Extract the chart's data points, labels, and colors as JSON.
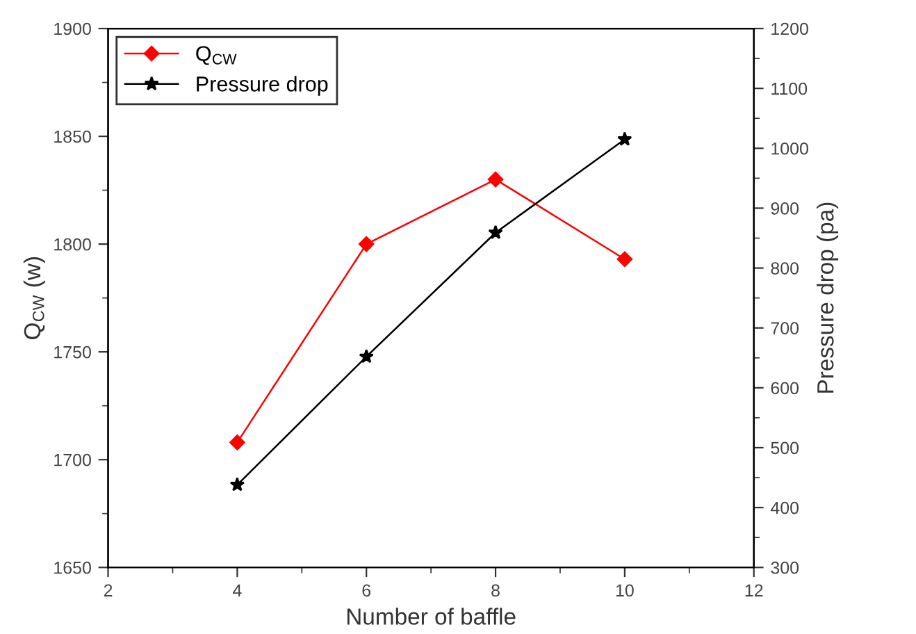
{
  "chart_data": {
    "type": "line",
    "xlabel": "Number of baffle",
    "ylabel": "Q$_{CW}$ (w)",
    "y2label": "Pressure drop (pa)",
    "x": [
      4,
      6,
      8,
      10
    ],
    "series": [
      {
        "name": "Q$_{CW}$",
        "color": "#ff0000",
        "values": [
          1708,
          1800,
          1830,
          1793
        ],
        "marker": "diamond"
      },
      {
        "name": "Pressure drop",
        "color": "#000000",
        "values": [
          438,
          652,
          859,
          1015
        ],
        "marker": "star",
        "axis": "y2"
      }
    ],
    "xlim": [
      2,
      12
    ],
    "xticks": [
      2,
      4,
      6,
      8,
      10,
      12
    ],
    "ylim": [
      1650,
      1900
    ],
    "yticks": [
      1650,
      1700,
      1750,
      1800,
      1850,
      1900
    ],
    "y2lim": [
      300,
      1200
    ],
    "y2ticks": [
      300,
      400,
      500,
      600,
      700,
      800,
      900,
      1000,
      1100,
      1200
    ],
    "grid": false,
    "legend": "top left",
    "line_style": "solid"
  }
}
